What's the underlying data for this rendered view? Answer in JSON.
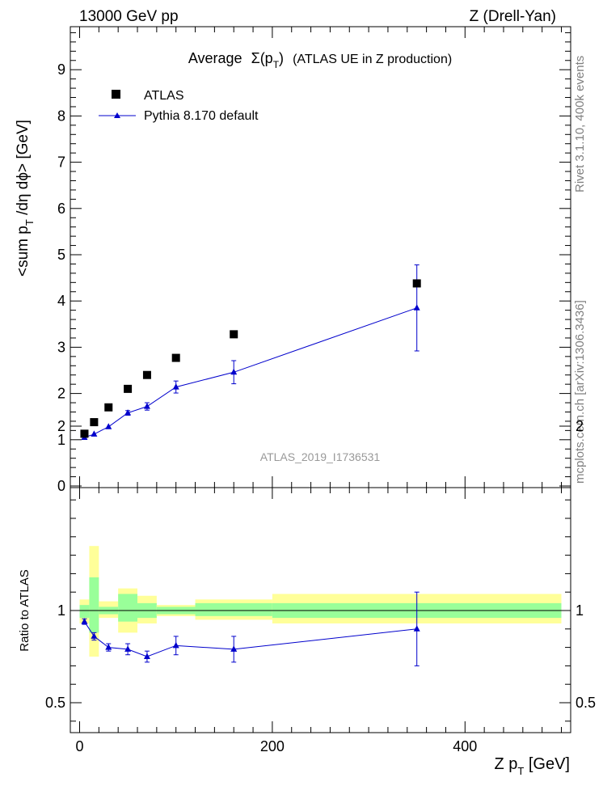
{
  "header": {
    "energy_label": "13000 GeV pp",
    "process_label": "Z (Drell-Yan)"
  },
  "side_labels": {
    "rivet": "Rivet 3.1.10,  400k events",
    "mcplots": "mcplots.cern.ch [arXiv:1306.3436]"
  },
  "chart_data": [
    {
      "type": "scatter",
      "title_prefix": "Average",
      "title_symbol": "Σ(p",
      "title_sub": "T",
      "title_close": ")",
      "title_suffix": "(ATLAS UE in Z production)",
      "ylabel_parts": [
        "<sum p",
        "T",
        " /dη dϕ> [GeV]"
      ],
      "xlim": [
        0,
        510
      ],
      "ylim": [
        0,
        10
      ],
      "yticks": [
        0,
        1,
        2,
        3,
        4,
        5,
        6,
        7,
        8,
        9
      ],
      "watermark": "ATLAS_2019_I1736531",
      "legend_position": "top-left",
      "series": [
        {
          "name": "ATLAS",
          "marker": "square",
          "color": "#000000",
          "x": [
            5,
            15,
            30,
            50,
            70,
            100,
            160,
            350
          ],
          "y": [
            1.13,
            1.38,
            1.7,
            2.1,
            2.4,
            2.77,
            3.28,
            4.38
          ]
        },
        {
          "name": "Pythia 8.170 default",
          "marker": "triangle",
          "color": "#0000cc",
          "x": [
            5,
            15,
            30,
            50,
            70,
            100,
            160,
            350
          ],
          "y": [
            1.05,
            1.12,
            1.28,
            1.58,
            1.72,
            2.14,
            2.46,
            3.85
          ],
          "yerr": [
            0.02,
            0.03,
            0.04,
            0.05,
            0.08,
            0.13,
            0.25,
            0.93
          ]
        }
      ]
    },
    {
      "type": "scatter",
      "ylabel": "Ratio to ATLAS",
      "xlabel_parts": [
        "Z p",
        "T",
        " [GeV]"
      ],
      "xlim": [
        -10,
        510
      ],
      "ylim": [
        0.35,
        2.3
      ],
      "yticks": [
        0.5,
        1,
        2
      ],
      "ytick_labels": [
        "0.5",
        "1",
        "2"
      ],
      "xticks": [
        0,
        200,
        400
      ],
      "xtick_labels": [
        "0",
        "200",
        "400"
      ],
      "bands": [
        {
          "x0": 0,
          "x1": 10,
          "yellow": [
            0.93,
            1.06
          ],
          "green": [
            0.96,
            1.03
          ]
        },
        {
          "x0": 10,
          "x1": 20,
          "yellow": [
            0.75,
            1.35
          ],
          "green": [
            0.88,
            1.18
          ]
        },
        {
          "x0": 20,
          "x1": 40,
          "yellow": [
            0.96,
            1.05
          ],
          "green": [
            0.98,
            1.02
          ]
        },
        {
          "x0": 40,
          "x1": 60,
          "yellow": [
            0.88,
            1.12
          ],
          "green": [
            0.94,
            1.09
          ]
        },
        {
          "x0": 60,
          "x1": 80,
          "yellow": [
            0.93,
            1.08
          ],
          "green": [
            0.96,
            1.04
          ]
        },
        {
          "x0": 80,
          "x1": 120,
          "yellow": [
            0.97,
            1.03
          ],
          "green": [
            0.98,
            1.02
          ]
        },
        {
          "x0": 120,
          "x1": 200,
          "yellow": [
            0.95,
            1.06
          ],
          "green": [
            0.97,
            1.04
          ]
        },
        {
          "x0": 200,
          "x1": 500,
          "yellow": [
            0.93,
            1.09
          ],
          "green": [
            0.96,
            1.04
          ]
        }
      ],
      "series": [
        {
          "name": "Pythia 8.170 default",
          "color": "#0000cc",
          "x": [
            5,
            15,
            30,
            50,
            70,
            100,
            160,
            350
          ],
          "y": [
            0.94,
            0.86,
            0.8,
            0.79,
            0.75,
            0.81,
            0.79,
            0.9
          ],
          "yerr": [
            0.015,
            0.02,
            0.02,
            0.03,
            0.03,
            0.05,
            0.07,
            0.2
          ]
        }
      ]
    }
  ]
}
